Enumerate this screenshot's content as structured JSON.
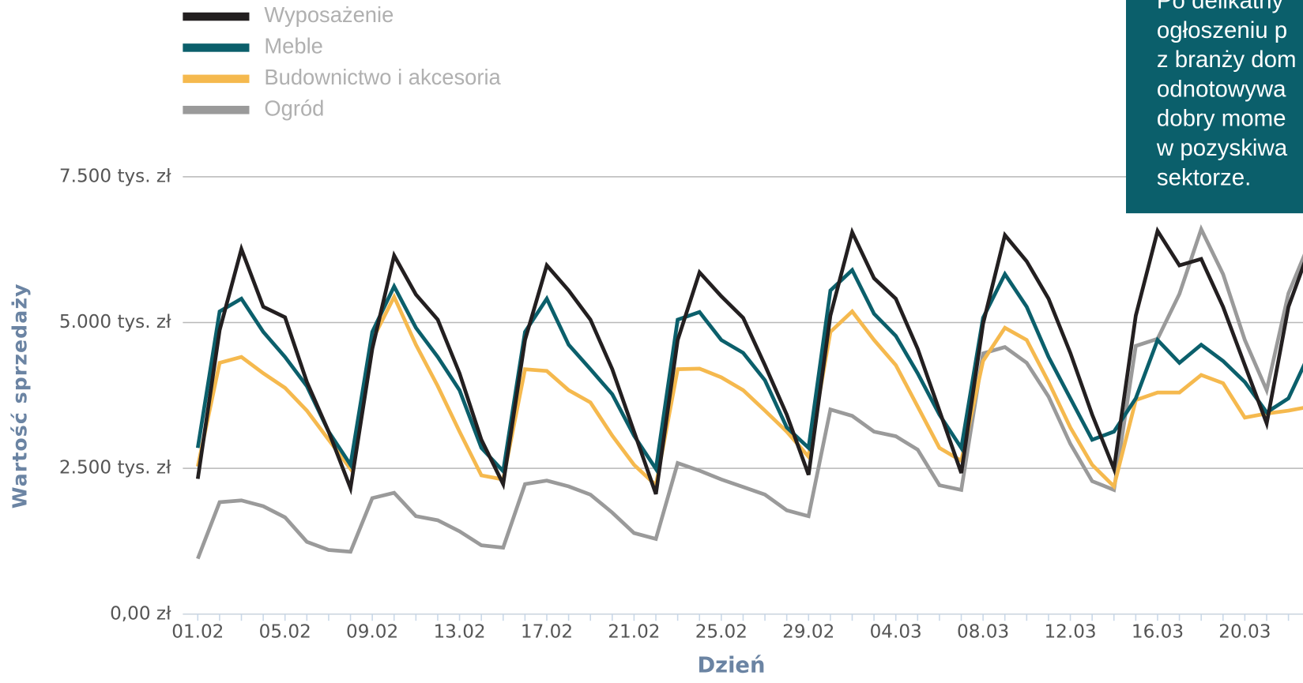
{
  "chart_data": {
    "type": "line",
    "xlabel": "Dzień",
    "ylabel": "Wartość sprzedaży",
    "annotation": [
      "Po delikatny",
      "ogłoszeniu p",
      "z branży dom",
      "odnotowywa",
      "dobry mome",
      "w pozyskiwa",
      "sektorze."
    ],
    "categories": [
      "01.02",
      null,
      null,
      null,
      "05.02",
      null,
      null,
      null,
      "09.02",
      null,
      null,
      null,
      "13.02",
      null,
      null,
      null,
      "17.02",
      null,
      null,
      null,
      "21.02",
      null,
      null,
      null,
      "25.02",
      null,
      null,
      null,
      "29.02",
      null,
      null,
      null,
      "04.03",
      null,
      null,
      null,
      "08.03",
      null,
      null,
      null,
      "12.03",
      null,
      null,
      null,
      "16.03",
      null,
      null,
      null,
      "20.03",
      null,
      null,
      null
    ],
    "ylim": [
      0,
      7500
    ],
    "yticks": [
      {
        "value": 0,
        "label": "0,00 zł"
      },
      {
        "value": 2500,
        "label": "2.500 tys. zł"
      },
      {
        "value": 5000,
        "label": "5.000 tys. zł"
      },
      {
        "value": 7500,
        "label": "7.500 tys. zł"
      }
    ],
    "grid": true,
    "series": [
      {
        "name": "Wyposażenie",
        "color": "#231f20",
        "values": [
          2320,
          4870,
          6260,
          5270,
          5090,
          3980,
          3130,
          2160,
          4550,
          6150,
          5480,
          5050,
          4130,
          2990,
          2230,
          4700,
          5980,
          5550,
          5050,
          4200,
          3130,
          2060,
          4700,
          5860,
          5450,
          5080,
          4270,
          3420,
          2390,
          5120,
          6550,
          5760,
          5410,
          4550,
          3490,
          2420,
          4980,
          6500,
          6050,
          5410,
          4480,
          3420,
          2490,
          5120,
          6570,
          5980,
          6090,
          5270,
          4270,
          3270,
          5270,
          6300
        ]
      },
      {
        "name": "Meble",
        "color": "#0b5f6b",
        "values": [
          2850,
          5190,
          5410,
          4840,
          4410,
          3910,
          3130,
          2560,
          4840,
          5620,
          4910,
          4410,
          3840,
          2850,
          2450,
          4840,
          5410,
          4620,
          4200,
          3770,
          3060,
          2490,
          5050,
          5180,
          4700,
          4480,
          4010,
          3200,
          2850,
          5550,
          5900,
          5150,
          4770,
          4130,
          3420,
          2850,
          5080,
          5830,
          5270,
          4410,
          3700,
          2990,
          3130,
          3700,
          4700,
          4310,
          4620,
          4340,
          3980,
          3460,
          3700,
          4500
        ]
      },
      {
        "name": "Budownictwo i akcesoria",
        "color": "#f5b94e",
        "values": [
          2530,
          4310,
          4410,
          4130,
          3880,
          3490,
          2990,
          2490,
          4700,
          5440,
          4620,
          3910,
          3130,
          2380,
          2310,
          4200,
          4170,
          3840,
          3630,
          3060,
          2560,
          2210,
          4200,
          4210,
          4060,
          3840,
          3490,
          3130,
          2700,
          4840,
          5190,
          4700,
          4270,
          3560,
          2850,
          2630,
          4340,
          4910,
          4700,
          3980,
          3200,
          2560,
          2190,
          3670,
          3800,
          3800,
          4100,
          3960,
          3370,
          3440,
          3490,
          3560
        ]
      },
      {
        "name": "Ogród",
        "color": "#9a9a9a",
        "values": [
          950,
          1920,
          1950,
          1850,
          1660,
          1240,
          1100,
          1070,
          1990,
          2080,
          1680,
          1610,
          1420,
          1180,
          1140,
          2230,
          2290,
          2190,
          2050,
          1740,
          1390,
          1290,
          2590,
          2460,
          2310,
          2180,
          2050,
          1780,
          1680,
          3510,
          3400,
          3130,
          3050,
          2820,
          2210,
          2130,
          4470,
          4580,
          4310,
          3730,
          2920,
          2280,
          2130,
          4600,
          4720,
          5490,
          6600,
          5830,
          4700,
          3840,
          5500,
          6400
        ]
      }
    ]
  }
}
